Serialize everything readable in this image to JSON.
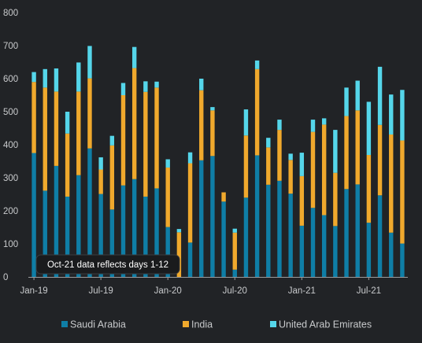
{
  "chart_data": {
    "type": "bar",
    "stacked": true,
    "title": "",
    "xlabel": "",
    "ylabel": "",
    "ylim": [
      0,
      800
    ],
    "yticks": [
      0,
      100,
      200,
      300,
      400,
      500,
      600,
      700,
      800
    ],
    "grid": false,
    "legend_position": "bottom",
    "categories": [
      "2019-01",
      "2019-02",
      "2019-03",
      "2019-04",
      "2019-05",
      "2019-06",
      "2019-07",
      "2019-08",
      "2019-09",
      "2019-10",
      "2019-11",
      "2019-12",
      "2020-01",
      "2020-02",
      "2020-03",
      "2020-04",
      "2020-05",
      "2020-06",
      "2020-07",
      "2020-08",
      "2020-09",
      "2020-10",
      "2020-11",
      "2020-12",
      "2021-01",
      "2021-02",
      "2021-03",
      "2021-04",
      "2021-05",
      "2021-06",
      "2021-07",
      "2021-08",
      "2021-09",
      "2021-10"
    ],
    "x_tick_labels": [
      {
        "index": 0,
        "label": "Jan-19"
      },
      {
        "index": 6,
        "label": "Jul-19"
      },
      {
        "index": 12,
        "label": "Jan-20"
      },
      {
        "index": 18,
        "label": "Jul-20"
      },
      {
        "index": 24,
        "label": "Jan-21"
      },
      {
        "index": 30,
        "label": "Jul-21"
      }
    ],
    "series": [
      {
        "name": "Saudi Arabia",
        "color": "#0f7ea6",
        "values": [
          375,
          261,
          336,
          243,
          308,
          389,
          251,
          204,
          277,
          296,
          243,
          268,
          151,
          0,
          104,
          353,
          366,
          228,
          22,
          240,
          368,
          279,
          291,
          252,
          155,
          209,
          187,
          154,
          266,
          280,
          164,
          247,
          134,
          101
        ]
      },
      {
        "name": "India",
        "color": "#f0a92d",
        "values": [
          215,
          312,
          225,
          191,
          253,
          212,
          74,
          194,
          273,
          336,
          317,
          305,
          180,
          135,
          240,
          212,
          138,
          28,
          112,
          188,
          261,
          113,
          154,
          102,
          150,
          230,
          274,
          161,
          221,
          224,
          205,
          213,
          297,
          312
        ]
      },
      {
        "name": "United Arab Emirates",
        "color": "#55d6ea",
        "values": [
          30,
          56,
          70,
          66,
          88,
          98,
          37,
          29,
          37,
          64,
          32,
          18,
          25,
          10,
          33,
          35,
          10,
          0,
          12,
          79,
          26,
          29,
          31,
          19,
          71,
          37,
          19,
          130,
          86,
          90,
          161,
          176,
          121,
          153
        ]
      }
    ],
    "annotation": "Oct-21 data reflects days 1-12"
  }
}
